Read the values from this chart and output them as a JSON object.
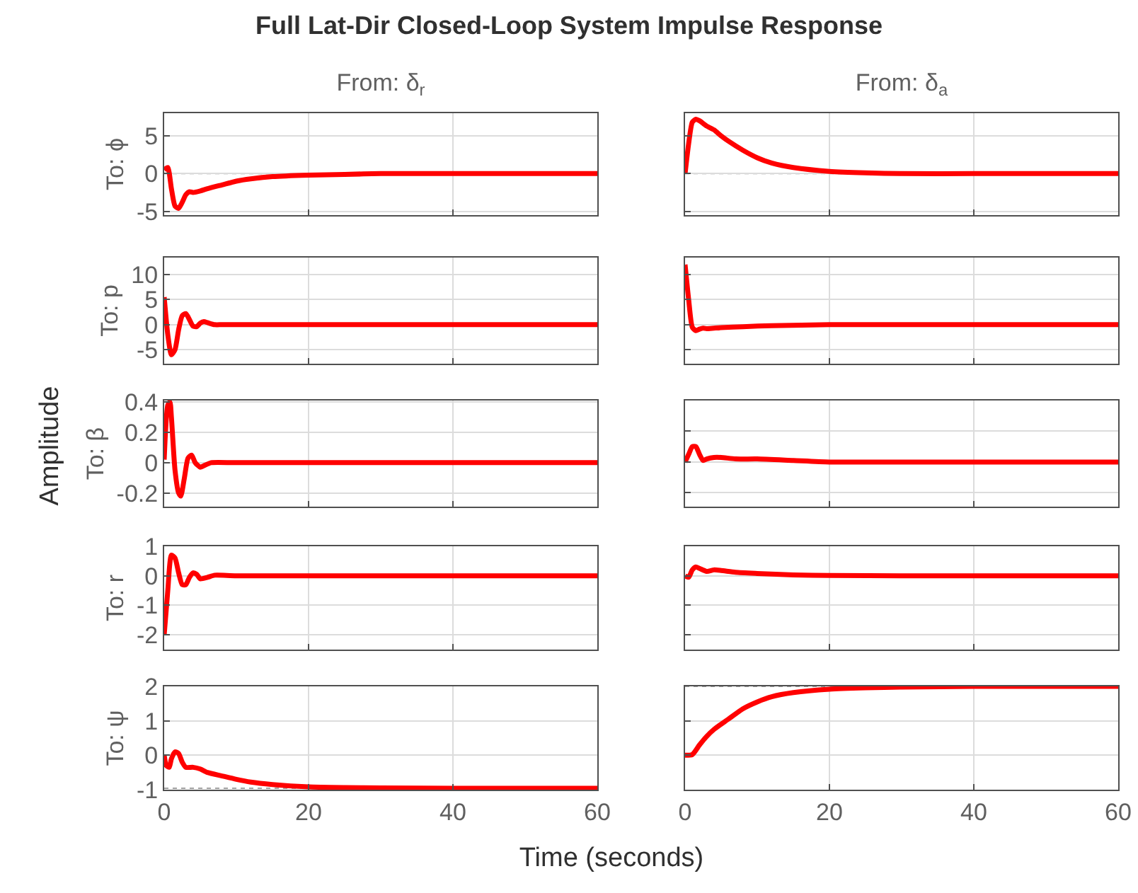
{
  "chart_data": [
    {
      "type": "line",
      "title": "From: δ$_{r}$",
      "ylabel": "To: ϕ",
      "annotations": [
        "Full Lat-Dir Closed-Loop System Impulse Response",
        "Amplitude",
        "Time (seconds)"
      ],
      "xlim": [
        0,
        60
      ],
      "xticks": [
        0,
        20,
        40,
        60
      ],
      "ylim": [
        -5.5,
        8
      ],
      "yticks": [
        -5,
        0,
        5
      ],
      "grid": true,
      "tick_labels": "y",
      "ref_lines": [
        {
          "axis": "y",
          "value": 0,
          "color": "#a0a0a0",
          "line_style": "dotted"
        }
      ],
      "x": [
        0,
        0.5,
        1,
        1.5,
        2,
        2.5,
        3,
        3.5,
        4,
        5,
        6,
        8,
        10,
        12,
        15,
        20,
        25,
        30,
        40,
        60
      ],
      "series": [
        {
          "color": "#ff0000",
          "values": [
            0.5,
            0.8,
            -2,
            -4.3,
            -4.6,
            -3.8,
            -2.8,
            -2.4,
            -2.5,
            -2.3,
            -2,
            -1.5,
            -1,
            -0.7,
            -0.4,
            -0.2,
            -0.1,
            0,
            0,
            0
          ]
        }
      ]
    },
    {
      "type": "line",
      "title": "From: δ$_{a}$",
      "xlim": [
        0,
        60
      ],
      "xticks": [
        0,
        20,
        40,
        60
      ],
      "ylim": [
        -5.5,
        8
      ],
      "yticks": [
        -5,
        0,
        5
      ],
      "grid": true,
      "tick_labels": false,
      "ref_lines": [
        {
          "axis": "y",
          "value": 0,
          "color": "#a0a0a0",
          "line_style": "dotted"
        }
      ],
      "x": [
        0,
        0.5,
        1,
        1.5,
        2,
        3,
        4,
        5,
        6,
        8,
        10,
        12,
        15,
        20,
        25,
        30,
        40,
        60
      ],
      "series": [
        {
          "color": "#ff0000",
          "values": [
            0,
            4,
            6.8,
            7.2,
            7,
            6.3,
            5.8,
            5,
            4.3,
            3.1,
            2.1,
            1.4,
            0.8,
            0.3,
            0.1,
            0,
            0,
            0
          ]
        }
      ]
    },
    {
      "type": "line",
      "ylabel": "To: p",
      "xlim": [
        0,
        60
      ],
      "xticks": [
        0,
        20,
        40,
        60
      ],
      "ylim": [
        -7.8,
        13.4
      ],
      "yticks": [
        -5,
        0,
        5,
        10
      ],
      "grid": true,
      "tick_labels": "y",
      "x": [
        0,
        0.5,
        1,
        1.5,
        2,
        2.5,
        3,
        3.5,
        4,
        4.5,
        5,
        5.5,
        6,
        7,
        8,
        10,
        60
      ],
      "series": [
        {
          "color": "#ff0000",
          "values": [
            5.5,
            -2,
            -6,
            -5,
            -1,
            1.8,
            2.2,
            1,
            -0.3,
            -0.4,
            0.3,
            0.6,
            0.4,
            0,
            0,
            0,
            0
          ]
        }
      ]
    },
    {
      "type": "line",
      "xlim": [
        0,
        60
      ],
      "xticks": [
        0,
        20,
        40,
        60
      ],
      "ylim": [
        -7.8,
        13.4
      ],
      "yticks": [
        -5,
        0,
        5,
        10
      ],
      "grid": true,
      "tick_labels": false,
      "x": [
        0,
        0.5,
        1,
        1.5,
        2,
        2.5,
        3,
        4,
        5,
        8,
        12,
        20,
        30,
        60
      ],
      "series": [
        {
          "color": "#ff0000",
          "values": [
            12,
            5,
            -0.5,
            -1.2,
            -0.9,
            -0.7,
            -0.8,
            -0.7,
            -0.6,
            -0.4,
            -0.2,
            0,
            0,
            0
          ]
        }
      ]
    },
    {
      "type": "line",
      "ylabel": "To: β",
      "xlim": [
        0,
        60
      ],
      "xticks": [
        0,
        20,
        40,
        60
      ],
      "ylim": [
        -0.29,
        0.41
      ],
      "yticks": [
        -0.2,
        0,
        0.2,
        0.4
      ],
      "grid": true,
      "tick_labels": "y",
      "x": [
        0,
        0.5,
        0.8,
        1,
        1.5,
        2,
        2.3,
        2.8,
        3.3,
        3.8,
        4.3,
        5,
        5.5,
        6.5,
        10,
        60
      ],
      "series": [
        {
          "color": "#ff0000",
          "values": [
            0.02,
            0.38,
            0.4,
            0.3,
            -0.05,
            -0.2,
            -0.22,
            -0.1,
            0.03,
            0.05,
            0,
            -0.03,
            -0.02,
            0,
            0,
            0
          ]
        }
      ]
    },
    {
      "type": "line",
      "xlim": [
        0,
        60
      ],
      "xticks": [
        0,
        20,
        40,
        60
      ],
      "ylim": [
        -0.29,
        0.4
      ],
      "yticks": [
        -0.2,
        0,
        0.2,
        0.4
      ],
      "grid": true,
      "tick_labels": false,
      "x": [
        0,
        0.5,
        1,
        1.5,
        2,
        2.5,
        3,
        4,
        5,
        7,
        10,
        15,
        20,
        30,
        60
      ],
      "series": [
        {
          "color": "#ff0000",
          "values": [
            0,
            0.05,
            0.1,
            0.1,
            0.05,
            0.01,
            0.02,
            0.03,
            0.03,
            0.02,
            0.02,
            0.01,
            0,
            0,
            0
          ]
        }
      ]
    },
    {
      "type": "line",
      "ylabel": "To: r",
      "xlim": [
        0,
        60
      ],
      "xticks": [
        0,
        20,
        40,
        60
      ],
      "ylim": [
        -2.5,
        1
      ],
      "yticks": [
        -2,
        -1,
        0,
        1
      ],
      "grid": true,
      "tick_labels": "y",
      "x": [
        0,
        0.5,
        1,
        1.5,
        2,
        2.5,
        3,
        3.5,
        4,
        4.5,
        5,
        6,
        7,
        10,
        60
      ],
      "series": [
        {
          "color": "#ff0000",
          "values": [
            -2,
            -0.5,
            0.7,
            0.6,
            0.1,
            -0.3,
            -0.3,
            -0.05,
            0.1,
            0.05,
            -0.1,
            -0.05,
            0.02,
            0,
            0
          ]
        }
      ]
    },
    {
      "type": "line",
      "xlim": [
        0,
        60
      ],
      "xticks": [
        0,
        20,
        40,
        60
      ],
      "ylim": [
        -2.5,
        1
      ],
      "yticks": [
        -2,
        -1,
        0,
        1
      ],
      "grid": true,
      "tick_labels": false,
      "x": [
        0,
        0.5,
        1,
        1.5,
        2,
        3,
        4,
        5,
        7,
        10,
        15,
        20,
        30,
        60
      ],
      "series": [
        {
          "color": "#ff0000",
          "values": [
            0,
            -0.05,
            0.2,
            0.3,
            0.25,
            0.15,
            0.2,
            0.18,
            0.12,
            0.08,
            0.03,
            0.01,
            0,
            0
          ]
        }
      ]
    },
    {
      "type": "line",
      "ylabel": "To: ψ",
      "xlim": [
        0,
        60
      ],
      "xticks": [
        0,
        20,
        40,
        60
      ],
      "ylim": [
        -1,
        2
      ],
      "yticks": [
        -1,
        0,
        1,
        2
      ],
      "grid": true,
      "ref_lines": [
        {
          "axis": "y",
          "value": -0.96,
          "color": "#a0a0a0",
          "line_style": "dotted"
        }
      ],
      "x": [
        0,
        0.3,
        0.7,
        1,
        1.5,
        2,
        2.5,
        3,
        4,
        5,
        6,
        8,
        10,
        12,
        15,
        20,
        25,
        30,
        40,
        60
      ],
      "series": [
        {
          "color": "#ff0000",
          "values": [
            0,
            -0.3,
            -0.35,
            -0.1,
            0.1,
            0.05,
            -0.2,
            -0.35,
            -0.35,
            -0.4,
            -0.5,
            -0.6,
            -0.7,
            -0.78,
            -0.85,
            -0.92,
            -0.94,
            -0.95,
            -0.96,
            -0.96
          ]
        }
      ]
    },
    {
      "type": "line",
      "xlim": [
        0,
        60
      ],
      "xticks": [
        0,
        20,
        40,
        60
      ],
      "ylim": [
        -1,
        2
      ],
      "yticks": [
        -1,
        0,
        1,
        2
      ],
      "grid": true,
      "tick_labels": "x",
      "ref_lines": [
        {
          "axis": "y",
          "value": 2,
          "color": "#a0a0a0",
          "line_style": "dotted"
        }
      ],
      "x": [
        0,
        1,
        2,
        3,
        4,
        6,
        8,
        10,
        12,
        15,
        20,
        25,
        30,
        40,
        60
      ],
      "series": [
        {
          "color": "#ff0000",
          "values": [
            0,
            0.02,
            0.3,
            0.55,
            0.75,
            1.05,
            1.35,
            1.55,
            1.7,
            1.82,
            1.92,
            1.96,
            1.98,
            2,
            2
          ]
        }
      ]
    }
  ]
}
